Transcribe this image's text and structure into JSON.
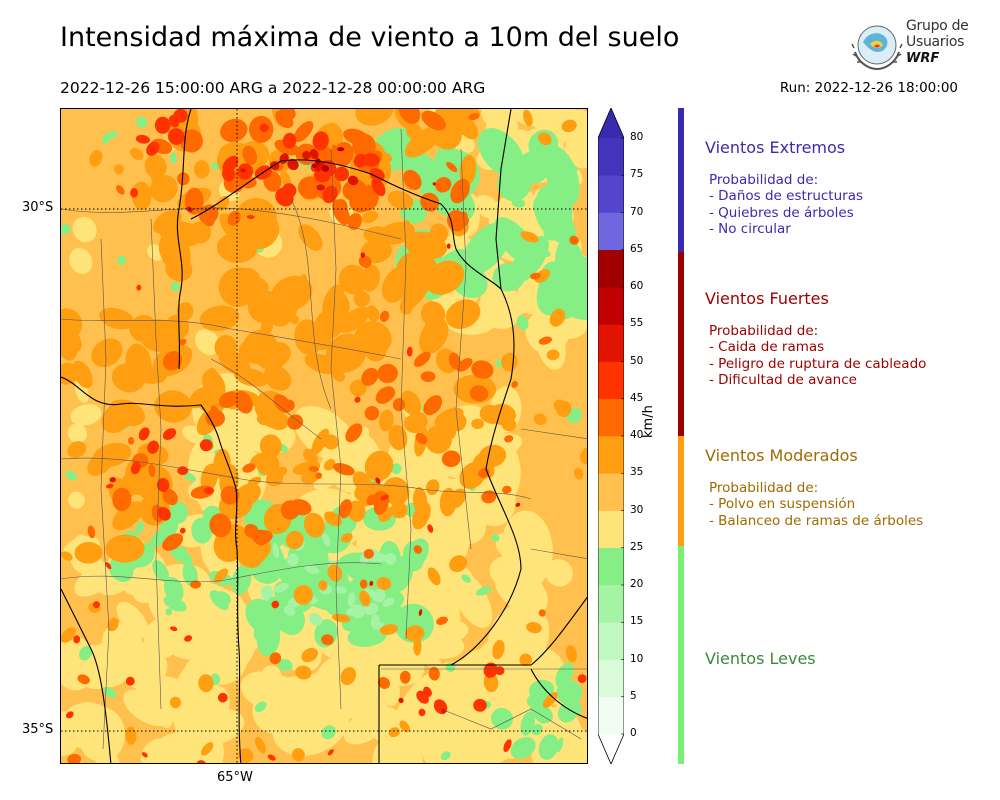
{
  "header": {
    "title": "Intensidad máxima de viento a 10m del suelo",
    "period": "2022-12-26 15:00:00 ARG  a  2022-12-28 00:00:00 ARG",
    "run": "Run: 2022-12-26 18:00:00"
  },
  "logo": {
    "line1": "Grupo de",
    "line2": "Usuarios",
    "line3": "WRF"
  },
  "map": {
    "lat_labels": [
      "30°S",
      "35°S"
    ],
    "lon_labels": [
      "65°W"
    ]
  },
  "colorbar": {
    "unit": "km/h",
    "levels": [
      0,
      5,
      10,
      15,
      20,
      25,
      30,
      35,
      40,
      45,
      50,
      55,
      60,
      65,
      70,
      75,
      80
    ],
    "level_labels": [
      "0",
      "5",
      "10",
      "15",
      "20",
      "25",
      "30",
      "35",
      "40",
      "45",
      "50",
      "55",
      "60",
      "65",
      "70",
      "75",
      "80"
    ],
    "colors": [
      "#f1fdf1",
      "#dafbda",
      "#c1f8c1",
      "#a5f3a5",
      "#85ee85",
      "#ffe47a",
      "#ffc04d",
      "#ff9e10",
      "#ff6a00",
      "#ff3300",
      "#e01400",
      "#c00000",
      "#a00000",
      "#7066dd",
      "#5544cc",
      "#4433bb"
    ],
    "under_color": "#ffffff",
    "over_color": "#3a2ab0"
  },
  "categories": [
    {
      "title": "Vientos Extremos",
      "color": "#3a2ab0",
      "lines": [
        "Probabilidad de:",
        "- Daños de estructuras",
        "- Quiebres de árboles",
        "- No circular"
      ]
    },
    {
      "title": "Vientos Fuertes",
      "color": "#9c0000",
      "lines": [
        "Probabilidad de:",
        "- Caida de ramas",
        "- Peligro de ruptura de cableado",
        "- Dificultad de avance"
      ]
    },
    {
      "title": "Vientos Moderados",
      "color": "#a06a00",
      "band_color": "#ff9e10",
      "lines": [
        "Probabilidad de:",
        "- Polvo en suspensión",
        "- Balanceo de ramas de árboles"
      ]
    },
    {
      "title": "Vientos Leves",
      "color": "#3b8a3b",
      "band_color": "#78f078",
      "lines": []
    }
  ]
}
